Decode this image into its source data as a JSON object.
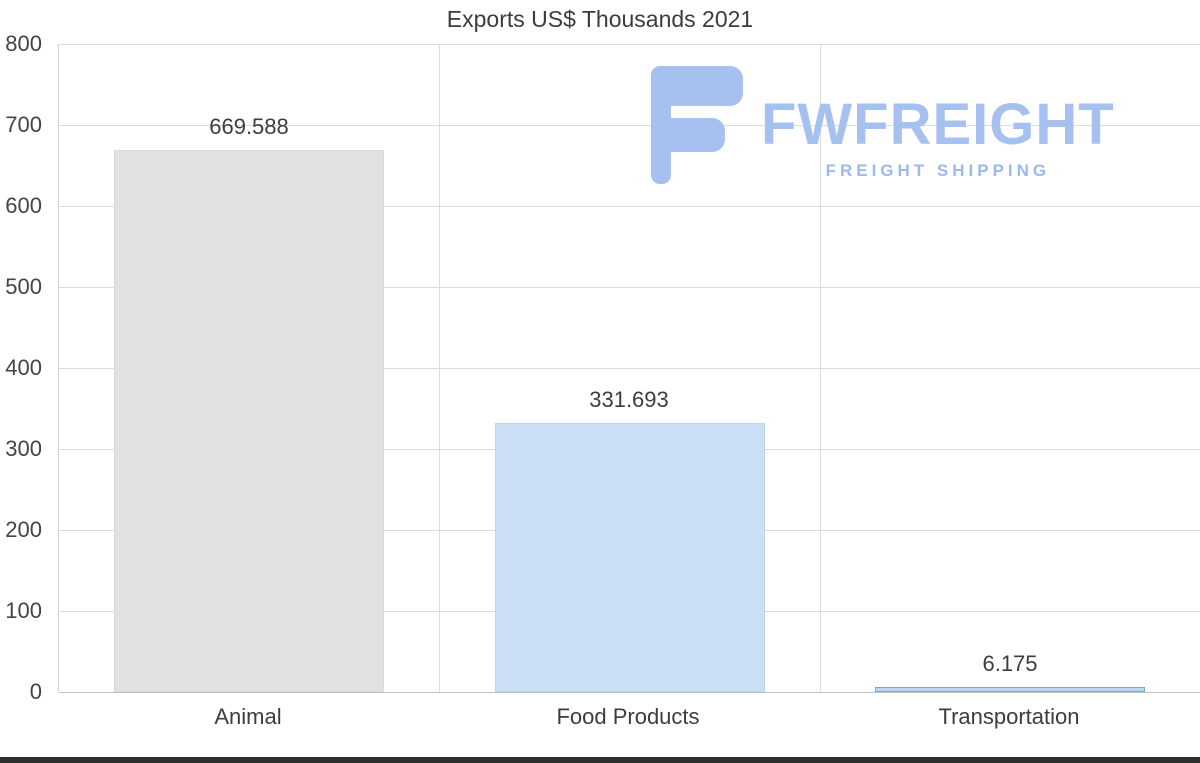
{
  "title": "Exports US$ Thousands 2021",
  "logo": {
    "name": "FWFREIGHT",
    "tagline": "FREIGHT SHIPPING",
    "color": "#a6c1f0"
  },
  "chart_data": {
    "type": "bar",
    "title": "Exports US$ Thousands 2021",
    "categories": [
      "Animal",
      "Food Products",
      "Transportation"
    ],
    "values": [
      669.588,
      331.693,
      6.175
    ],
    "value_labels": [
      "669.588",
      "331.693",
      "6.175"
    ],
    "series_colors": [
      "#e2e2e2",
      "#cbdff6",
      "#bdd7f2"
    ],
    "bar_border_colors": [
      "#d8d8d8",
      "#bdd6f0",
      "#7aa6dc"
    ],
    "xlabel": "",
    "ylabel": "",
    "ylim": [
      0,
      800
    ],
    "yticks": [
      0,
      100,
      200,
      300,
      400,
      500,
      600,
      700,
      800
    ],
    "grid": true,
    "legend": false
  }
}
